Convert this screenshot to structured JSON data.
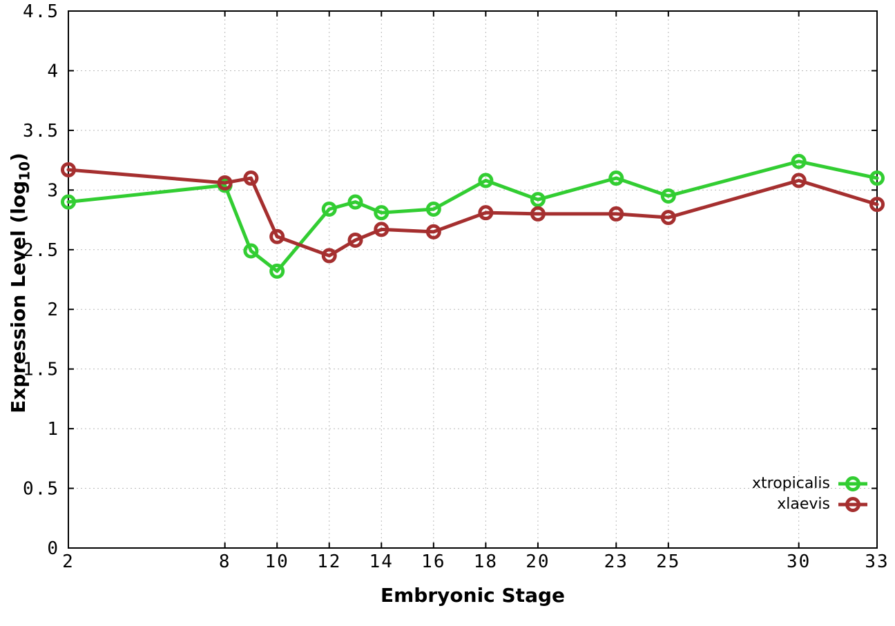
{
  "chart_data": {
    "type": "line",
    "title": "",
    "xlabel": "Embryonic Stage",
    "ylabel": {
      "prefix": "Expression Level (log",
      "sub": "10",
      "suffix": ")"
    },
    "xlim": [
      2,
      33
    ],
    "ylim": [
      0,
      4.5
    ],
    "x_ticks": [
      2,
      8,
      10,
      12,
      14,
      16,
      18,
      20,
      23,
      25,
      30,
      33
    ],
    "y_ticks": [
      0,
      0.5,
      1,
      1.5,
      2,
      2.5,
      3,
      3.5,
      4,
      4.5
    ],
    "grid": true,
    "grid_style": "dotted",
    "legend_position": "bottom-right",
    "x": [
      2,
      8,
      9,
      10,
      12,
      13,
      14,
      16,
      18,
      20,
      23,
      25,
      30,
      33
    ],
    "series": [
      {
        "name": "xtropicalis",
        "color": "#32cd32",
        "marker": "open-circle",
        "values": [
          2.9,
          3.04,
          2.49,
          2.32,
          2.84,
          2.9,
          2.81,
          2.84,
          3.08,
          2.92,
          3.1,
          2.95,
          3.24,
          3.1
        ]
      },
      {
        "name": "xlaevis",
        "color": "#a52f2f",
        "marker": "open-circle",
        "values": [
          3.17,
          3.06,
          3.1,
          2.61,
          2.45,
          2.58,
          2.67,
          2.65,
          2.81,
          2.8,
          2.8,
          2.77,
          3.08,
          2.88
        ]
      }
    ],
    "colors": {
      "background": "#ffffff",
      "border": "#000000",
      "grid": "#b8b8b8",
      "text": "#000000"
    }
  }
}
